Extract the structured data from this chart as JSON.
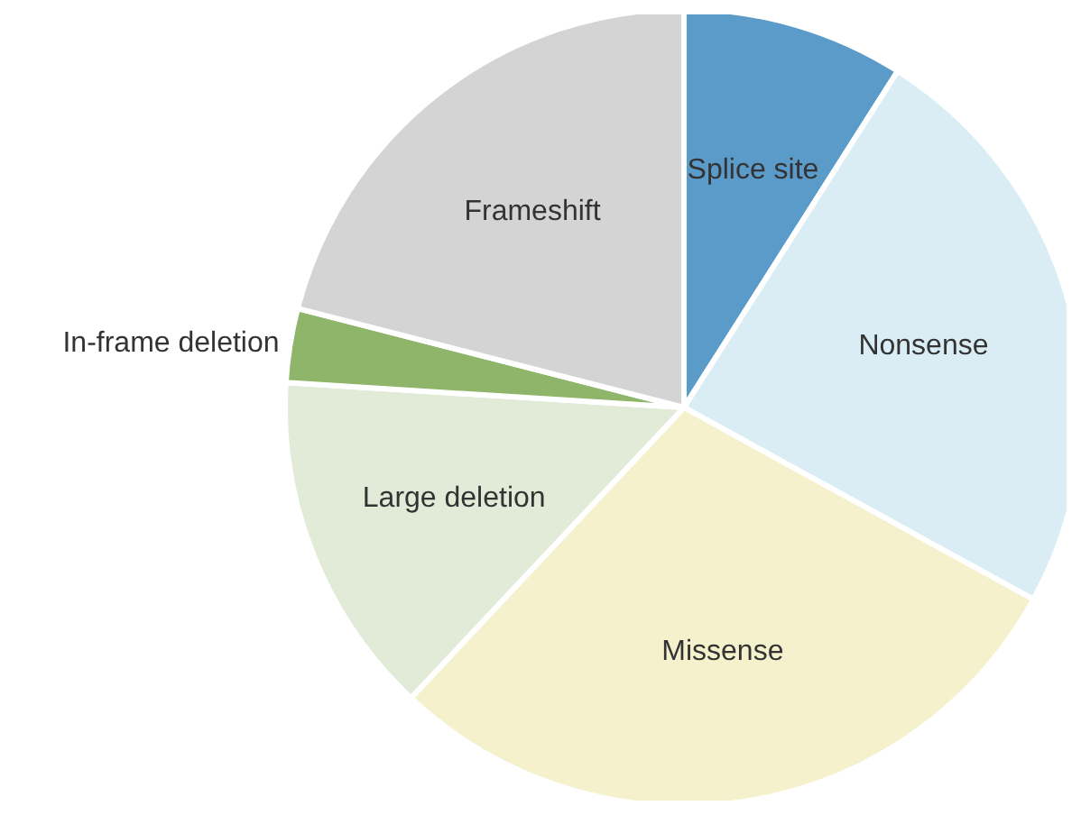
{
  "chart_data": {
    "type": "pie",
    "categories": [
      "Splice site",
      "Nonsense",
      "Missense",
      "Large deletion",
      "In-frame deletion",
      "Frameshift"
    ],
    "values": [
      9,
      24,
      29,
      14,
      3,
      21
    ],
    "colors": [
      "#5b9bc9",
      "#daedf5",
      "#f6f1cd",
      "#e2ebd7",
      "#8eb56a",
      "#d4d4d4"
    ],
    "legend": false
  }
}
